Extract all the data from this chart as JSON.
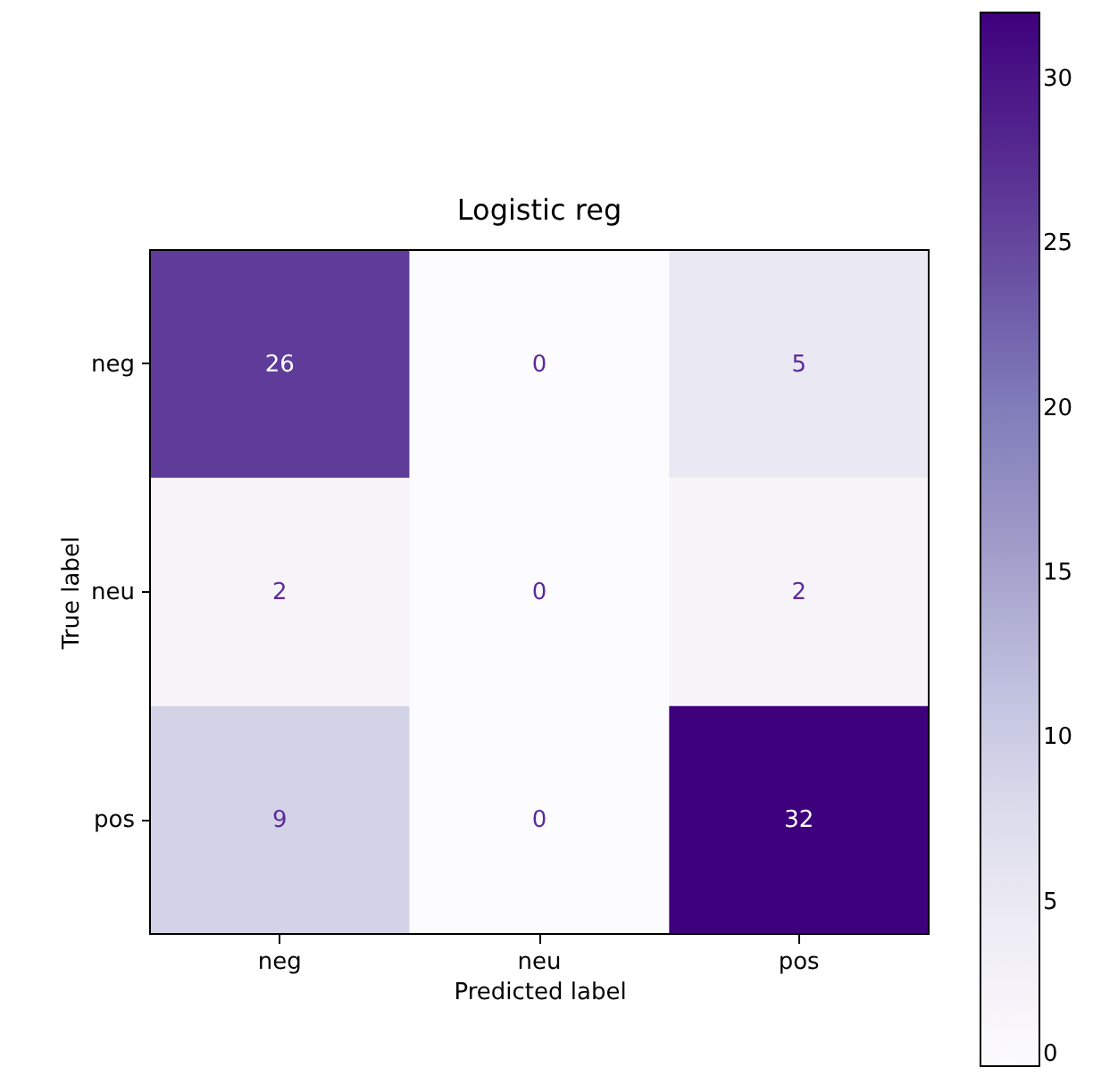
{
  "chart_data": {
    "type": "heatmap",
    "title": "Logistic reg",
    "xlabel": "Predicted label",
    "ylabel": "True label",
    "categories": [
      "neg",
      "neu",
      "pos"
    ],
    "y_categories": [
      "neg",
      "neu",
      "pos"
    ],
    "cells": [
      [
        26,
        0,
        5
      ],
      [
        2,
        0,
        2
      ],
      [
        9,
        0,
        32
      ]
    ],
    "clim": [
      0,
      32
    ],
    "cticks": [
      0,
      5,
      10,
      15,
      20,
      25,
      30
    ],
    "data_labels": true
  }
}
